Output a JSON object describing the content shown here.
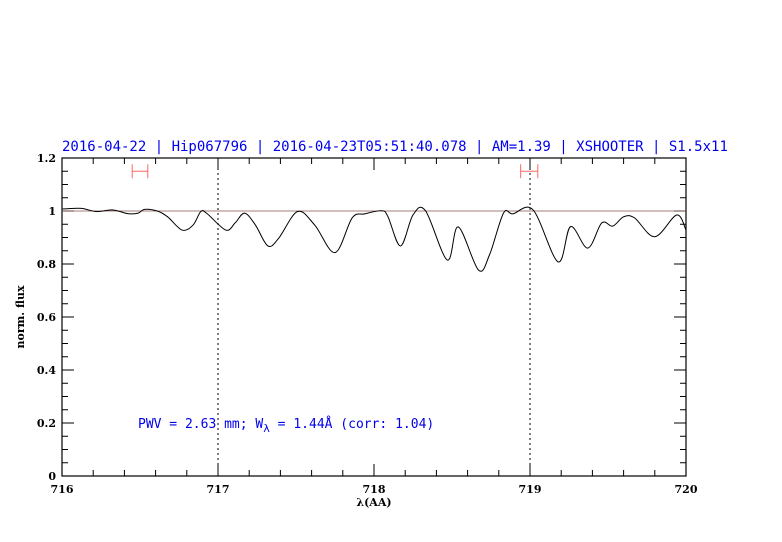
{
  "chart_data": {
    "type": "line",
    "title": "2016-04-22 | Hip067796 | 2016-04-23T05:51:40.078 | AM=1.39 | XSHOOTER | S1.5x11",
    "xlabel": "λ(AA)",
    "ylabel": "norm. flux",
    "xlim": [
      716,
      720
    ],
    "ylim": [
      0,
      1.2
    ],
    "xticks": [
      "716",
      "717",
      "718",
      "719",
      "720"
    ],
    "yticks": [
      "0",
      "0.2",
      "0.4",
      "0.6",
      "0.8",
      "1",
      "1.2"
    ],
    "annotation": {
      "prefix": "PWV = 2.63 mm; W",
      "sub": "λ",
      "suffix": " = 1.44Å (corr: 1.04)"
    },
    "reference_line": 1.0,
    "vertical_dotted_lines": [
      717,
      719
    ],
    "markers": [
      {
        "x_from": 716.45,
        "x_to": 716.55,
        "y": 1.15
      },
      {
        "x_from": 718.94,
        "x_to": 719.05,
        "y": 1.15
      }
    ],
    "colors": {
      "title": "#0000ee",
      "annotation": "#0000ee",
      "marker": "#ff6666",
      "reference": "#8a5050",
      "curve": "#000000"
    },
    "series": [
      {
        "x": [
          716.0,
          716.017,
          716.125,
          716.219,
          716.327,
          716.421,
          716.488,
          716.529,
          716.61,
          716.677,
          716.77,
          716.84,
          716.89,
          716.93,
          717.05,
          717.11,
          717.17,
          717.24,
          717.32,
          717.39,
          717.51,
          717.62,
          717.75,
          717.86,
          717.94,
          718.05,
          718.09,
          718.17,
          718.25,
          718.33,
          718.47,
          718.54,
          718.67,
          718.74,
          718.83,
          718.89,
          719.02,
          719.18,
          719.26,
          719.37,
          719.46,
          719.53,
          719.6,
          719.67,
          719.8,
          719.94,
          720.0
        ],
        "y": [
          1.008,
          1.008,
          1.01,
          0.998,
          1.004,
          0.99,
          0.992,
          1.006,
          1.0,
          0.978,
          0.928,
          0.947,
          0.998,
          0.99,
          0.928,
          0.955,
          0.992,
          0.947,
          0.868,
          0.898,
          0.998,
          0.947,
          0.843,
          0.974,
          0.989,
          1.001,
          0.978,
          0.868,
          0.985,
          1.001,
          0.815,
          0.94,
          0.777,
          0.834,
          0.992,
          0.989,
          1.004,
          0.808,
          0.941,
          0.86,
          0.955,
          0.943,
          0.978,
          0.974,
          0.903,
          0.985,
          0.928
        ]
      }
    ]
  }
}
